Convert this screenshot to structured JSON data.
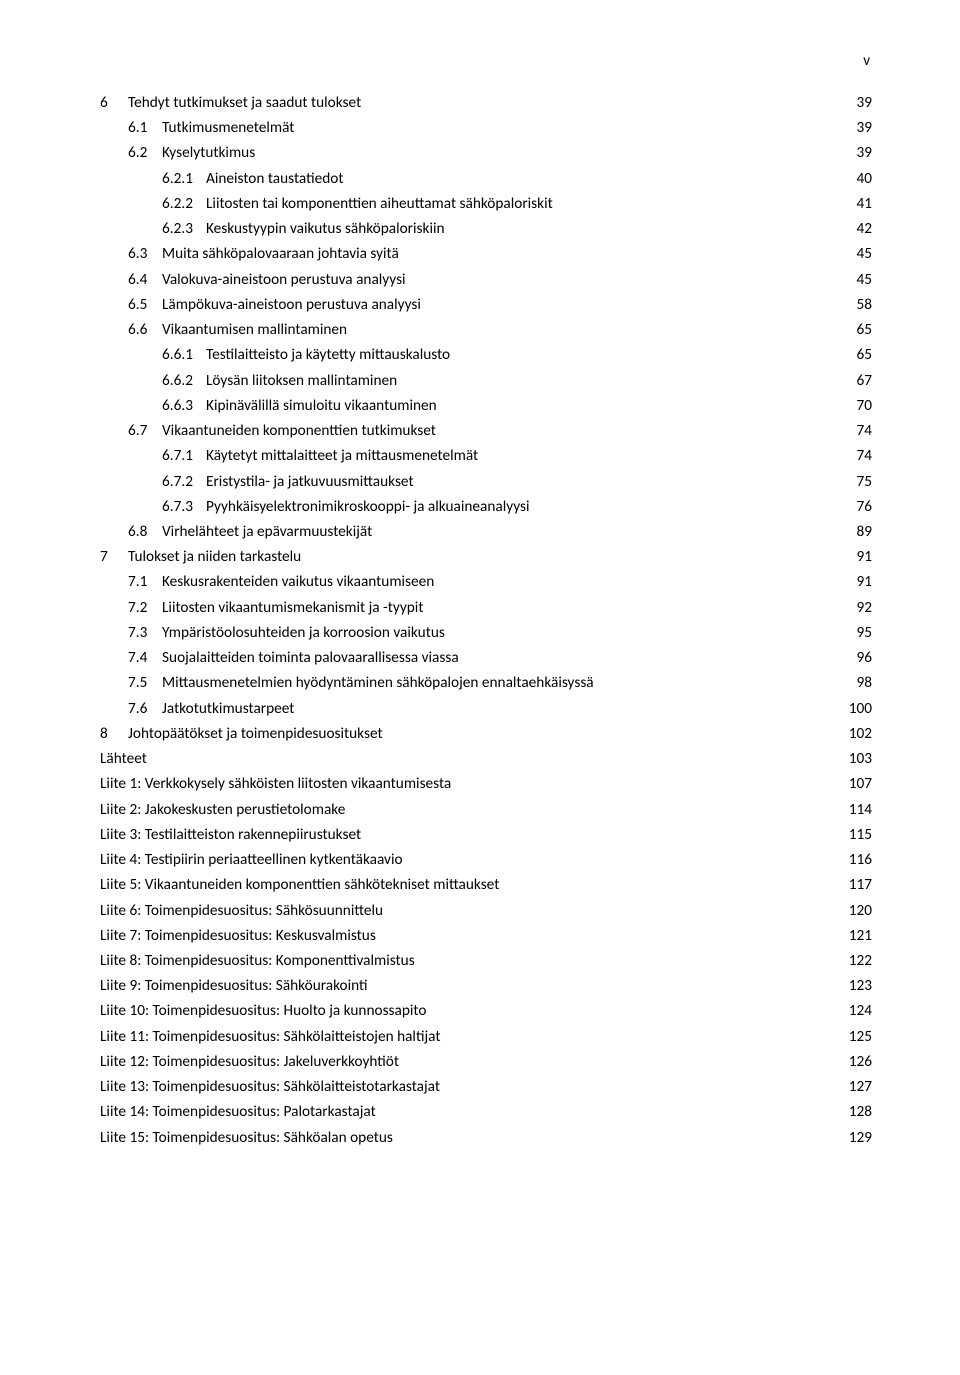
{
  "pageMarker": "v",
  "colors": {
    "text": "#000000",
    "background": "#ffffff"
  },
  "typography": {
    "fontFamily": "Calibri",
    "fontSizePt": 11.5,
    "lineHeight": 1.65
  },
  "toc": [
    {
      "num": "6",
      "label": "Tehdyt tutkimukset ja saadut tulokset",
      "page": "39",
      "level": 1
    },
    {
      "num": "6.1",
      "label": "Tutkimusmenetelmät",
      "page": "39",
      "level": 2
    },
    {
      "num": "6.2",
      "label": "Kyselytutkimus",
      "page": "39",
      "level": 2
    },
    {
      "num": "6.2.1",
      "label": "Aineiston taustatiedot",
      "page": "40",
      "level": 3
    },
    {
      "num": "6.2.2",
      "label": "Liitosten tai komponenttien aiheuttamat sähköpaloriskit",
      "page": "41",
      "level": 3
    },
    {
      "num": "6.2.3",
      "label": "Keskustyypin vaikutus sähköpaloriskiin",
      "page": "42",
      "level": 3
    },
    {
      "num": "6.3",
      "label": "Muita sähköpalovaaraan johtavia syitä",
      "page": "45",
      "level": 2
    },
    {
      "num": "6.4",
      "label": "Valokuva-aineistoon perustuva analyysi",
      "page": "45",
      "level": 2
    },
    {
      "num": "6.5",
      "label": "Lämpökuva-aineistoon perustuva analyysi",
      "page": "58",
      "level": 2
    },
    {
      "num": "6.6",
      "label": "Vikaantumisen mallintaminen",
      "page": "65",
      "level": 2
    },
    {
      "num": "6.6.1",
      "label": "Testilaitteisto ja käytetty mittauskalusto",
      "page": "65",
      "level": 3
    },
    {
      "num": "6.6.2",
      "label": "Löysän liitoksen mallintaminen",
      "page": "67",
      "level": 3
    },
    {
      "num": "6.6.3",
      "label": "Kipinävälillä simuloitu vikaantuminen",
      "page": "70",
      "level": 3
    },
    {
      "num": "6.7",
      "label": "Vikaantuneiden komponenttien tutkimukset",
      "page": "74",
      "level": 2
    },
    {
      "num": "6.7.1",
      "label": "Käytetyt mittalaitteet ja mittausmenetelmät",
      "page": "74",
      "level": 3
    },
    {
      "num": "6.7.2",
      "label": "Eristystila- ja jatkuvuusmittaukset",
      "page": "75",
      "level": 3
    },
    {
      "num": "6.7.3",
      "label": "Pyyhkäisyelektronimikroskooppi- ja alkuaineanalyysi",
      "page": "76",
      "level": 3
    },
    {
      "num": "6.8",
      "label": "Virhelähteet ja epävarmuustekijät",
      "page": "89",
      "level": 2
    },
    {
      "num": "7",
      "label": "Tulokset ja niiden tarkastelu",
      "page": "91",
      "level": 1
    },
    {
      "num": "7.1",
      "label": "Keskusrakenteiden vaikutus vikaantumiseen",
      "page": "91",
      "level": 2
    },
    {
      "num": "7.2",
      "label": "Liitosten vikaantumismekanismit ja -tyypit",
      "page": "92",
      "level": 2
    },
    {
      "num": "7.3",
      "label": "Ympäristöolosuhteiden ja korroosion vaikutus",
      "page": "95",
      "level": 2
    },
    {
      "num": "7.4",
      "label": "Suojalaitteiden toiminta palovaarallisessa viassa",
      "page": "96",
      "level": 2
    },
    {
      "num": "7.5",
      "label": "Mittausmenetelmien hyödyntäminen sähköpalojen ennaltaehkäisyssä",
      "page": "98",
      "level": 2
    },
    {
      "num": "7.6",
      "label": "Jatkotutkimustarpeet",
      "page": "100",
      "level": 2
    },
    {
      "num": "8",
      "label": "Johtopäätökset ja toimenpidesuositukset",
      "page": "102",
      "level": 1
    },
    {
      "num": "",
      "label": "Lähteet",
      "page": "103",
      "level": 0
    },
    {
      "num": "",
      "label": "Liite 1: Verkkokysely sähköisten liitosten vikaantumisesta",
      "page": "107",
      "level": 0
    },
    {
      "num": "",
      "label": "Liite 2: Jakokeskusten perustietolomake",
      "page": "114",
      "level": 0
    },
    {
      "num": "",
      "label": "Liite 3: Testilaitteiston rakennepiirustukset",
      "page": "115",
      "level": 0
    },
    {
      "num": "",
      "label": "Liite 4: Testipiirin periaatteellinen kytkentäkaavio",
      "page": "116",
      "level": 0
    },
    {
      "num": "",
      "label": "Liite 5: Vikaantuneiden komponenttien sähkötekniset mittaukset",
      "page": "117",
      "level": 0
    },
    {
      "num": "",
      "label": "Liite 6: Toimenpidesuositus: Sähkösuunnittelu",
      "page": "120",
      "level": 0
    },
    {
      "num": "",
      "label": "Liite 7: Toimenpidesuositus: Keskusvalmistus",
      "page": "121",
      "level": 0
    },
    {
      "num": "",
      "label": "Liite 8: Toimenpidesuositus: Komponenttivalmistus",
      "page": "122",
      "level": 0
    },
    {
      "num": "",
      "label": "Liite 9: Toimenpidesuositus: Sähköurakointi",
      "page": "123",
      "level": 0
    },
    {
      "num": "",
      "label": "Liite 10: Toimenpidesuositus: Huolto ja kunnossapito",
      "page": "124",
      "level": 0
    },
    {
      "num": "",
      "label": "Liite 11: Toimenpidesuositus: Sähkölaitteistojen haltijat",
      "page": "125",
      "level": 0
    },
    {
      "num": "",
      "label": "Liite 12: Toimenpidesuositus: Jakeluverkkoyhtiöt",
      "page": "126",
      "level": 0
    },
    {
      "num": "",
      "label": "Liite 13: Toimenpidesuositus: Sähkölaitteistotarkastajat",
      "page": "127",
      "level": 0
    },
    {
      "num": "",
      "label": "Liite 14: Toimenpidesuositus: Palotarkastajat",
      "page": "128",
      "level": 0
    },
    {
      "num": "",
      "label": "Liite 15: Toimenpidesuositus: Sähköalan opetus",
      "page": "129",
      "level": 0
    }
  ]
}
